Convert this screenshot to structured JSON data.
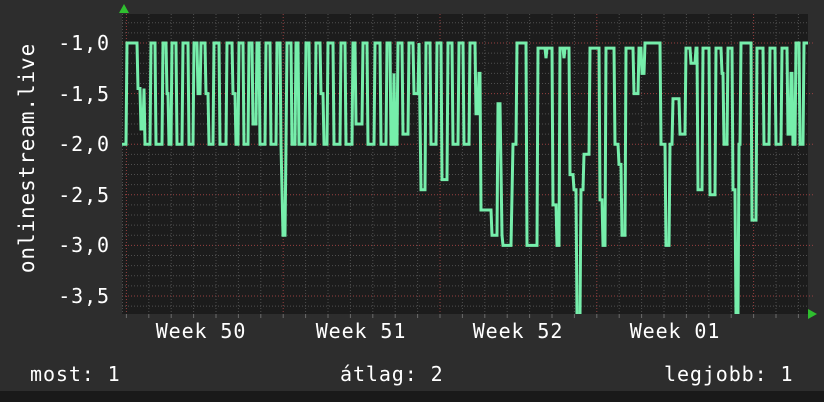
{
  "vertical_axis_title": "onlinestream.live",
  "stats": {
    "now": "most: 1",
    "average": "átlag: 2",
    "best": "legjobb: 1"
  },
  "colors": {
    "page_bg": "#2d2d2d",
    "plot_bg": "#1c1c1c",
    "footer_bg": "#191919",
    "text": "#ffffff",
    "line": "#76eeab",
    "grid_major": "#964040",
    "grid_minor": "#4f4f4f",
    "tick": "#6a6a6a",
    "axis_arrow": "#2fbf2f"
  },
  "chart_data": {
    "type": "line",
    "title": "",
    "ylabel": "onlinestream.live",
    "x_ticks": [
      "Week 50",
      "Week 51",
      "Week 52",
      "Week 01"
    ],
    "y_ticks": [
      "-1,0",
      "-1,5",
      "-2,0",
      "-2,5",
      "-3,0",
      "-3,5"
    ],
    "ylim": [
      -3.68,
      -0.71
    ],
    "grid": "dotted; red major lines every 0.5 units and weekly; gray minor lines every 0.1 units and daily",
    "legend_position": "none",
    "x_axis_note": "approx. 4.5 weeks of data, daily minor gridlines; points given as [x_px_on_graph, value]",
    "series": [
      {
        "name": "onlinestream.live position",
        "points": [
          [
            122,
            -2
          ],
          [
            126,
            -2
          ],
          [
            127,
            -1
          ],
          [
            137,
            -1
          ],
          [
            138,
            -1.45
          ],
          [
            140,
            -1.45
          ],
          [
            141,
            -1.85
          ],
          [
            143,
            -1.85
          ],
          [
            144,
            -1.45
          ],
          [
            145,
            -2
          ],
          [
            150,
            -2
          ],
          [
            151,
            -1
          ],
          [
            155,
            -1
          ],
          [
            156,
            -2
          ],
          [
            162,
            -2
          ],
          [
            163,
            -1
          ],
          [
            166,
            -1
          ],
          [
            167,
            -1.5
          ],
          [
            168,
            -1.5
          ],
          [
            169,
            -2
          ],
          [
            171,
            -2
          ],
          [
            172,
            -1
          ],
          [
            176,
            -1
          ],
          [
            177,
            -2
          ],
          [
            182,
            -2
          ],
          [
            183,
            -1
          ],
          [
            188,
            -1
          ],
          [
            189,
            -2
          ],
          [
            193,
            -2
          ],
          [
            194,
            -1
          ],
          [
            197,
            -1
          ],
          [
            198,
            -1.5
          ],
          [
            200,
            -1.5
          ],
          [
            201,
            -1
          ],
          [
            205,
            -1
          ],
          [
            206,
            -1.5
          ],
          [
            208,
            -1.5
          ],
          [
            209,
            -2
          ],
          [
            213,
            -2
          ],
          [
            214,
            -1
          ],
          [
            219,
            -1
          ],
          [
            220,
            -2
          ],
          [
            226,
            -2
          ],
          [
            227,
            -1
          ],
          [
            232,
            -1
          ],
          [
            233,
            -1.5
          ],
          [
            235,
            -1.5
          ],
          [
            236,
            -2
          ],
          [
            238,
            -2
          ],
          [
            239,
            -1
          ],
          [
            243,
            -1
          ],
          [
            244,
            -2
          ],
          [
            248,
            -2
          ],
          [
            249,
            -1
          ],
          [
            252,
            -1
          ],
          [
            253,
            -1.8
          ],
          [
            256,
            -1.8
          ],
          [
            257,
            -1
          ],
          [
            259,
            -1
          ],
          [
            260,
            -2
          ],
          [
            265,
            -2
          ],
          [
            266,
            -1
          ],
          [
            270,
            -1
          ],
          [
            271,
            -2
          ],
          [
            276,
            -2
          ],
          [
            277,
            -1
          ],
          [
            280,
            -1
          ],
          [
            281,
            -2
          ],
          [
            283,
            -2.9
          ],
          [
            285,
            -2.9
          ],
          [
            286,
            -2
          ],
          [
            287,
            -1
          ],
          [
            291,
            -1
          ],
          [
            292,
            -2
          ],
          [
            295,
            -2
          ],
          [
            296,
            -1
          ],
          [
            298,
            -1
          ],
          [
            299,
            -2
          ],
          [
            305,
            -2
          ],
          [
            306,
            -1
          ],
          [
            309,
            -1
          ],
          [
            310,
            -2
          ],
          [
            315,
            -2
          ],
          [
            316,
            -1
          ],
          [
            320,
            -1
          ],
          [
            321,
            -1.5
          ],
          [
            323,
            -1.5
          ],
          [
            324,
            -2
          ],
          [
            327,
            -2
          ],
          [
            328,
            -1
          ],
          [
            333,
            -1
          ],
          [
            334,
            -2
          ],
          [
            340,
            -2
          ],
          [
            341,
            -1
          ],
          [
            345,
            -1
          ],
          [
            346,
            -2
          ],
          [
            352,
            -2
          ],
          [
            353,
            -1
          ],
          [
            355,
            -1
          ],
          [
            356,
            -1.8
          ],
          [
            362,
            -1.8
          ],
          [
            363,
            -1
          ],
          [
            367,
            -1
          ],
          [
            368,
            -2
          ],
          [
            374,
            -2
          ],
          [
            375,
            -1
          ],
          [
            380,
            -1
          ],
          [
            381,
            -2
          ],
          [
            386,
            -2
          ],
          [
            387,
            -1
          ],
          [
            390,
            -1
          ],
          [
            391,
            -2
          ],
          [
            393,
            -2
          ],
          [
            394,
            -1.3
          ],
          [
            395,
            -2
          ],
          [
            397,
            -2
          ],
          [
            398,
            -1
          ],
          [
            402,
            -1
          ],
          [
            403,
            -1.9
          ],
          [
            408,
            -1.9
          ],
          [
            409,
            -1
          ],
          [
            413,
            -1
          ],
          [
            414,
            -1.5
          ],
          [
            418,
            -1.5
          ],
          [
            419,
            -1
          ],
          [
            421,
            -2.45
          ],
          [
            425,
            -2.45
          ],
          [
            426,
            -1
          ],
          [
            430,
            -1
          ],
          [
            431,
            -2
          ],
          [
            436,
            -2
          ],
          [
            437,
            -1
          ],
          [
            441,
            -1
          ],
          [
            442,
            -2.35
          ],
          [
            447,
            -2.35
          ],
          [
            448,
            -1
          ],
          [
            452,
            -1
          ],
          [
            453,
            -2
          ],
          [
            458,
            -2
          ],
          [
            459,
            -1
          ],
          [
            463,
            -1
          ],
          [
            464,
            -2
          ],
          [
            469,
            -2
          ],
          [
            470,
            -1
          ],
          [
            475,
            -1
          ],
          [
            476,
            -1.7
          ],
          [
            478,
            -1.7
          ],
          [
            479,
            -1.3
          ],
          [
            480,
            -1.3
          ],
          [
            481,
            -2.65
          ],
          [
            491,
            -2.65
          ],
          [
            492,
            -2.9
          ],
          [
            497,
            -2.9
          ],
          [
            498,
            -1.6
          ],
          [
            500,
            -1.6
          ],
          [
            502,
            -2.9
          ],
          [
            503,
            -3
          ],
          [
            511,
            -3
          ],
          [
            513,
            -2
          ],
          [
            516,
            -2
          ],
          [
            517,
            -1
          ],
          [
            526,
            -1
          ],
          [
            527,
            -3
          ],
          [
            537,
            -3
          ],
          [
            538,
            -1.05
          ],
          [
            545,
            -1.05
          ],
          [
            546,
            -1.15
          ],
          [
            547,
            -1.05
          ],
          [
            552,
            -1.05
          ],
          [
            553,
            -2.6
          ],
          [
            556,
            -2.6
          ],
          [
            557,
            -3
          ],
          [
            559,
            -3
          ],
          [
            560,
            -1.05
          ],
          [
            563,
            -1.05
          ],
          [
            564,
            -1.15
          ],
          [
            565,
            -1.05
          ],
          [
            569,
            -1.05
          ],
          [
            570,
            -2.3
          ],
          [
            573,
            -2.3
          ],
          [
            574,
            -2.45
          ],
          [
            576,
            -2.45
          ],
          [
            577,
            -3.7
          ],
          [
            580,
            -3.7
          ],
          [
            581,
            -2.45
          ],
          [
            583,
            -2.45
          ],
          [
            584,
            -2.1
          ],
          [
            589,
            -2.1
          ],
          [
            590,
            -1.05
          ],
          [
            599,
            -1.05
          ],
          [
            600,
            -2.55
          ],
          [
            602,
            -2.55
          ],
          [
            603,
            -3
          ],
          [
            605,
            -3
          ],
          [
            606,
            -1.05
          ],
          [
            614,
            -1.05
          ],
          [
            615,
            -2
          ],
          [
            618,
            -2
          ],
          [
            619,
            -2.2
          ],
          [
            621,
            -2.2
          ],
          [
            622,
            -2.9
          ],
          [
            625,
            -2.9
          ],
          [
            626,
            -1.05
          ],
          [
            633,
            -1.05
          ],
          [
            634,
            -1.5
          ],
          [
            638,
            -1.5
          ],
          [
            639,
            -1.05
          ],
          [
            641,
            -1.05
          ],
          [
            642,
            -1.3
          ],
          [
            644,
            -1.3
          ],
          [
            645,
            -1
          ],
          [
            660,
            -1
          ],
          [
            661,
            -2
          ],
          [
            665,
            -2
          ],
          [
            666,
            -3
          ],
          [
            669,
            -3
          ],
          [
            670,
            -2
          ],
          [
            672,
            -2
          ],
          [
            673,
            -1.55
          ],
          [
            679,
            -1.55
          ],
          [
            680,
            -1.9
          ],
          [
            685,
            -1.9
          ],
          [
            686,
            -1.05
          ],
          [
            690,
            -1.05
          ],
          [
            691,
            -1.2
          ],
          [
            695,
            -1.2
          ],
          [
            696,
            -1.05
          ],
          [
            697,
            -1.05
          ],
          [
            698,
            -2.45
          ],
          [
            702,
            -2.45
          ],
          [
            703,
            -1.05
          ],
          [
            709,
            -1.05
          ],
          [
            710,
            -2.5
          ],
          [
            715,
            -2.5
          ],
          [
            716,
            -1.05
          ],
          [
            721,
            -1.05
          ],
          [
            722,
            -1.3
          ],
          [
            723,
            -1.3
          ],
          [
            724,
            -2
          ],
          [
            727,
            -2
          ],
          [
            728,
            -1.05
          ],
          [
            732,
            -1.05
          ],
          [
            733,
            -2.45
          ],
          [
            735,
            -2.45
          ],
          [
            736,
            -3.7
          ],
          [
            738,
            -3.7
          ],
          [
            739,
            -2
          ],
          [
            740,
            -2
          ],
          [
            741,
            -1
          ],
          [
            751,
            -1
          ],
          [
            752,
            -2.75
          ],
          [
            756,
            -2.75
          ],
          [
            757,
            -1.05
          ],
          [
            763,
            -1.05
          ],
          [
            764,
            -2
          ],
          [
            769,
            -2
          ],
          [
            770,
            -1.05
          ],
          [
            775,
            -1.05
          ],
          [
            776,
            -2
          ],
          [
            781,
            -2
          ],
          [
            782,
            -1.05
          ],
          [
            787,
            -1.05
          ],
          [
            788,
            -1.9
          ],
          [
            790,
            -1.9
          ],
          [
            791,
            -1.3
          ],
          [
            792,
            -1.3
          ],
          [
            793,
            -2
          ],
          [
            795,
            -2
          ],
          [
            796,
            -1
          ],
          [
            799,
            -1
          ],
          [
            800,
            -2
          ],
          [
            803,
            -2
          ],
          [
            804,
            -1
          ],
          [
            808,
            -1
          ]
        ]
      }
    ]
  }
}
